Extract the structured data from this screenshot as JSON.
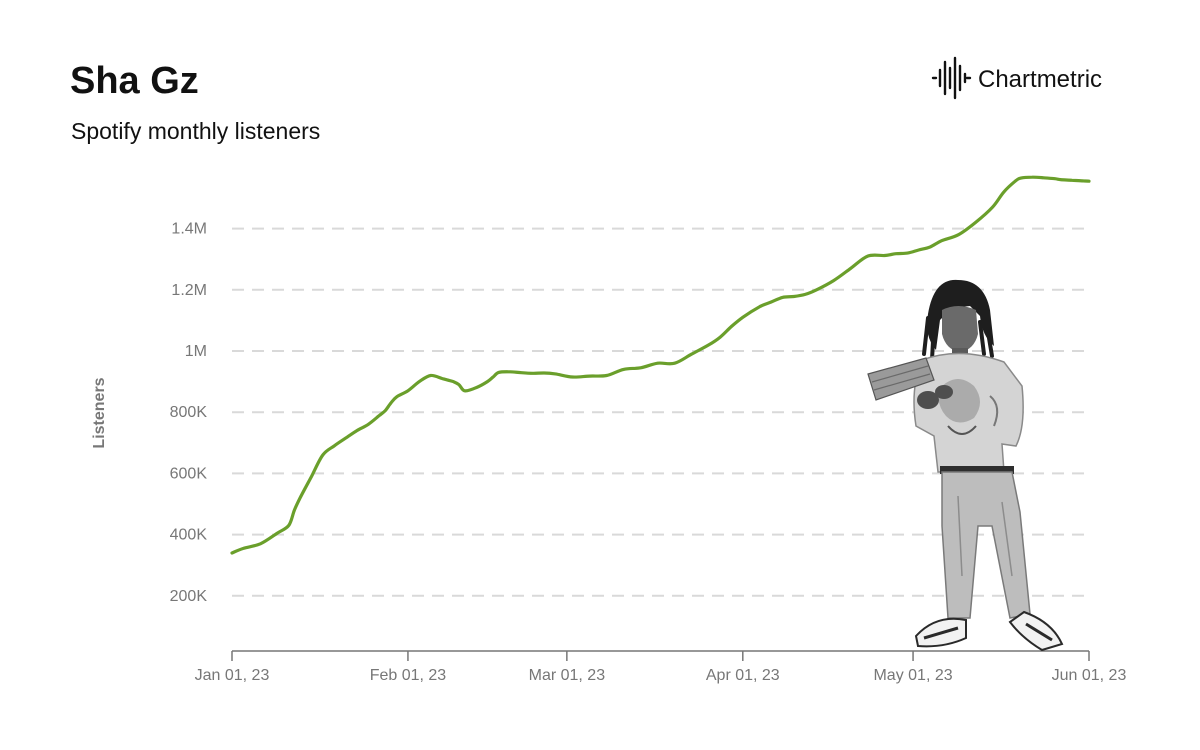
{
  "header": {
    "title": "Sha Gz",
    "subtitle": "Spotify monthly listeners"
  },
  "brand": {
    "name": "Chartmetric",
    "icon": "waveform-logo-icon"
  },
  "colors": {
    "line": "#6a9f2b",
    "grid": "#d9d9d9",
    "tick": "#777777"
  },
  "chart_data": {
    "type": "line",
    "title": "Sha Gz",
    "subtitle": "Spotify monthly listeners",
    "xlabel": "",
    "ylabel": "Listeners",
    "x_axis": "date",
    "xlim": [
      "2023-01-01",
      "2023-06-01"
    ],
    "ylim": [
      0,
      1600000
    ],
    "grid": "horizontal dashed",
    "legend": "none",
    "x_ticks": [
      {
        "date": "2023-01-01",
        "label": "Jan 01, 23"
      },
      {
        "date": "2023-02-01",
        "label": "Feb 01, 23"
      },
      {
        "date": "2023-03-01",
        "label": "Mar 01, 23"
      },
      {
        "date": "2023-04-01",
        "label": "Apr 01, 23"
      },
      {
        "date": "2023-05-01",
        "label": "May 01, 23"
      },
      {
        "date": "2023-06-01",
        "label": "Jun 01, 23"
      }
    ],
    "y_ticks": [
      {
        "value": 200000,
        "label": "200K"
      },
      {
        "value": 400000,
        "label": "400K"
      },
      {
        "value": 600000,
        "label": "600K"
      },
      {
        "value": 800000,
        "label": "800K"
      },
      {
        "value": 1000000,
        "label": "1M"
      },
      {
        "value": 1200000,
        "label": "1.2M"
      },
      {
        "value": 1400000,
        "label": "1.4M"
      }
    ],
    "series": [
      {
        "x": [
          "2023-01-01",
          "2023-01-03",
          "2023-01-06",
          "2023-01-09",
          "2023-01-11",
          "2023-01-12",
          "2023-01-13",
          "2023-01-15",
          "2023-01-17",
          "2023-01-19",
          "2023-01-21",
          "2023-01-23",
          "2023-01-25",
          "2023-01-27",
          "2023-01-28",
          "2023-01-29",
          "2023-01-30",
          "2023-02-01",
          "2023-02-03",
          "2023-02-05",
          "2023-02-07",
          "2023-02-08",
          "2023-02-09",
          "2023-02-10",
          "2023-02-11",
          "2023-02-13",
          "2023-02-15",
          "2023-02-16",
          "2023-02-17",
          "2023-02-19",
          "2023-02-21",
          "2023-02-23",
          "2023-02-25",
          "2023-02-27",
          "2023-03-02",
          "2023-03-05",
          "2023-03-08",
          "2023-03-11",
          "2023-03-14",
          "2023-03-17",
          "2023-03-20",
          "2023-03-23",
          "2023-03-26",
          "2023-03-28",
          "2023-03-30",
          "2023-04-01",
          "2023-04-04",
          "2023-04-06",
          "2023-04-08",
          "2023-04-10",
          "2023-04-12",
          "2023-04-14",
          "2023-04-17",
          "2023-04-20",
          "2023-04-23",
          "2023-04-26",
          "2023-04-28",
          "2023-04-30",
          "2023-05-02",
          "2023-05-04",
          "2023-05-06",
          "2023-05-09",
          "2023-05-12",
          "2023-05-15",
          "2023-05-17",
          "2023-05-19",
          "2023-05-20",
          "2023-05-22",
          "2023-05-24",
          "2023-05-26",
          "2023-05-27",
          "2023-05-29",
          "2023-05-31",
          "2023-06-01"
        ],
        "values": [
          340000,
          355000,
          370000,
          405000,
          430000,
          480000,
          520000,
          590000,
          660000,
          690000,
          715000,
          740000,
          760000,
          790000,
          805000,
          830000,
          850000,
          870000,
          900000,
          920000,
          910000,
          905000,
          900000,
          890000,
          870000,
          880000,
          900000,
          915000,
          930000,
          932000,
          929000,
          927000,
          928000,
          925000,
          915000,
          918000,
          920000,
          940000,
          945000,
          960000,
          960000,
          990000,
          1020000,
          1045000,
          1080000,
          1110000,
          1145000,
          1160000,
          1175000,
          1178000,
          1185000,
          1200000,
          1230000,
          1270000,
          1310000,
          1312000,
          1318000,
          1320000,
          1330000,
          1340000,
          1360000,
          1380000,
          1420000,
          1470000,
          1520000,
          1555000,
          1565000,
          1568000,
          1566000,
          1563000,
          1560000,
          1558000,
          1556000,
          1555000
        ]
      }
    ]
  }
}
